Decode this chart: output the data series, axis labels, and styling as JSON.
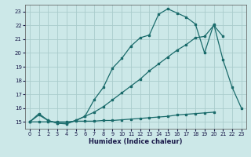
{
  "xlabel": "Humidex (Indice chaleur)",
  "bg_color": "#cce8e8",
  "grid_color": "#aacccc",
  "line_color": "#1a6b6b",
  "xlim": [
    -0.5,
    23.5
  ],
  "ylim": [
    14.5,
    23.5
  ],
  "yticks": [
    15,
    16,
    17,
    18,
    19,
    20,
    21,
    22,
    23
  ],
  "xticks": [
    0,
    1,
    2,
    3,
    4,
    5,
    6,
    7,
    8,
    9,
    10,
    11,
    12,
    13,
    14,
    15,
    16,
    17,
    18,
    19,
    20,
    21,
    22,
    23
  ],
  "curve1_x": [
    0,
    1,
    2,
    3,
    4,
    5,
    6,
    7,
    8,
    9,
    10,
    11,
    12,
    13,
    14,
    15,
    16,
    17,
    18,
    19,
    20,
    21,
    22,
    23
  ],
  "curve1_y": [
    15.0,
    15.5,
    15.1,
    14.9,
    14.85,
    15.1,
    15.4,
    16.6,
    17.5,
    18.9,
    19.6,
    20.5,
    21.1,
    21.3,
    22.8,
    23.2,
    22.9,
    22.6,
    22.1,
    20.0,
    22.1,
    19.5,
    17.5,
    16.0
  ],
  "curve2_x": [
    0,
    1,
    2,
    3,
    4,
    5,
    6,
    7,
    8,
    9,
    10,
    11,
    12,
    13,
    14,
    15,
    16,
    17,
    18,
    19,
    20,
    21
  ],
  "curve2_y": [
    15.0,
    15.6,
    15.1,
    14.9,
    14.9,
    15.1,
    15.4,
    15.7,
    16.1,
    16.6,
    17.1,
    17.6,
    18.1,
    18.7,
    19.2,
    19.7,
    20.2,
    20.6,
    21.1,
    21.2,
    22.0,
    21.2
  ],
  "curve3_x": [
    0,
    1,
    2,
    3,
    4,
    5,
    6,
    7,
    8,
    9,
    10,
    11,
    12,
    13,
    14,
    15,
    16,
    17,
    18,
    19,
    20
  ],
  "curve3_y": [
    15.0,
    15.0,
    15.0,
    15.0,
    15.0,
    15.05,
    15.05,
    15.05,
    15.1,
    15.1,
    15.15,
    15.2,
    15.25,
    15.3,
    15.35,
    15.4,
    15.5,
    15.55,
    15.6,
    15.65,
    15.7
  ]
}
